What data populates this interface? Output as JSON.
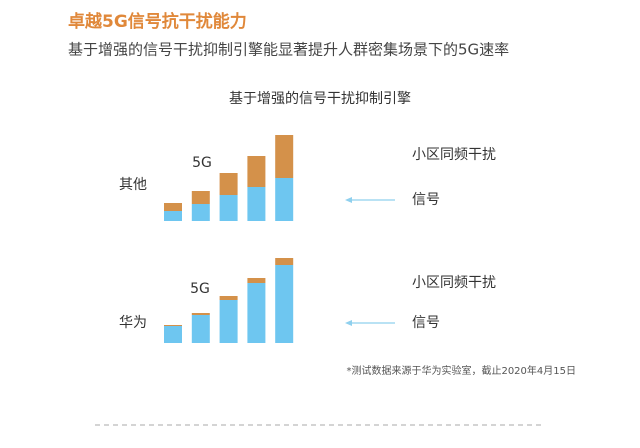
{
  "header": {
    "title": "卓越5G信号抗干扰能力",
    "subtitle": "基于增强的信号干扰抑制引擎能显著提升人群密集场景下的5G速率"
  },
  "figure_title": "基于增强的信号干扰抑制引擎",
  "footnote": "*测试数据来源于华为实验室，截止2020年4月15日",
  "chart_data": [
    {
      "type": "bar",
      "stacked": true,
      "label": "其他",
      "annotation": "5G",
      "series": [
        {
          "name": "信号",
          "color": "#6ec6f0",
          "values": [
            10,
            17,
            26,
            34,
            43
          ]
        },
        {
          "name": "小区同频干扰",
          "color": "#d4914a",
          "values": [
            8,
            13,
            22,
            31,
            43
          ]
        }
      ]
    },
    {
      "type": "bar",
      "stacked": true,
      "label": "华为",
      "annotation": "5G",
      "series": [
        {
          "name": "信号",
          "color": "#6ec6f0",
          "values": [
            17,
            28,
            43,
            60,
            78
          ]
        },
        {
          "name": "小区同频干扰",
          "color": "#d4914a",
          "values": [
            1,
            2,
            4,
            5,
            7
          ]
        }
      ]
    }
  ]
}
